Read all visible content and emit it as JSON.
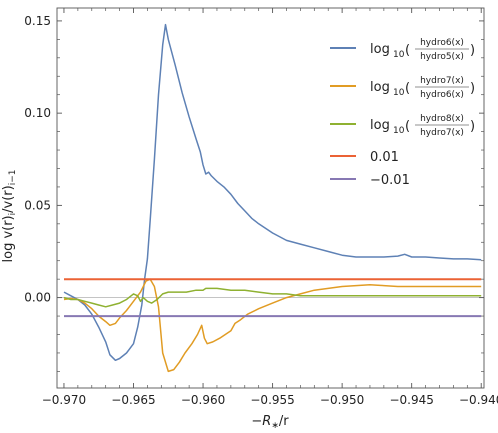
{
  "chart_data": {
    "type": "line",
    "xlabel": "−R∗/r",
    "ylabel": "log v(r)ᵢ/v(r)ᵢ₋₁",
    "xlim": [
      -0.9705,
      -0.9398
    ],
    "ylim": [
      -0.049,
      0.157
    ],
    "x_ticks": [
      -0.97,
      -0.965,
      -0.96,
      -0.955,
      -0.95,
      -0.945,
      -0.94
    ],
    "x_tick_labels": [
      "−0.970",
      "−0.965",
      "−0.960",
      "−0.955",
      "−0.950",
      "−0.945",
      "−0.940"
    ],
    "y_ticks": [
      0.0,
      0.05,
      0.1,
      0.15
    ],
    "y_tick_labels": [
      "0.00",
      "0.05",
      "0.10",
      "0.15"
    ],
    "grid": false,
    "legend_position": "right",
    "zero_line": true,
    "series": [
      {
        "name": "log10(hydro6(x)/hydro5(x))",
        "legend": {
          "prefix": "log",
          "base": "10",
          "num": "hydro6(x)",
          "den": "hydro5(x)"
        },
        "color": "#5e81b5",
        "points": [
          [
            -0.97,
            0.003
          ],
          [
            -0.9695,
            0.001
          ],
          [
            -0.969,
            -0.001
          ],
          [
            -0.9685,
            -0.004
          ],
          [
            -0.968,
            -0.009
          ],
          [
            -0.9675,
            -0.016
          ],
          [
            -0.967,
            -0.024
          ],
          [
            -0.9667,
            -0.031
          ],
          [
            -0.9663,
            -0.034
          ],
          [
            -0.966,
            -0.033
          ],
          [
            -0.9655,
            -0.03
          ],
          [
            -0.965,
            -0.025
          ],
          [
            -0.9647,
            -0.016
          ],
          [
            -0.9644,
            -0.004
          ],
          [
            -0.9642,
            0.01
          ],
          [
            -0.964,
            0.021
          ],
          [
            -0.9638,
            0.042
          ],
          [
            -0.9635,
            0.075
          ],
          [
            -0.9632,
            0.11
          ],
          [
            -0.9629,
            0.137
          ],
          [
            -0.9627,
            0.148
          ],
          [
            -0.9625,
            0.14
          ],
          [
            -0.962,
            0.126
          ],
          [
            -0.9615,
            0.111
          ],
          [
            -0.961,
            0.098
          ],
          [
            -0.9605,
            0.086
          ],
          [
            -0.9602,
            0.079
          ],
          [
            -0.96,
            0.072
          ],
          [
            -0.9598,
            0.067
          ],
          [
            -0.9596,
            0.068
          ],
          [
            -0.9594,
            0.066
          ],
          [
            -0.959,
            0.063
          ],
          [
            -0.9585,
            0.06
          ],
          [
            -0.958,
            0.056
          ],
          [
            -0.9575,
            0.051
          ],
          [
            -0.957,
            0.047
          ],
          [
            -0.9565,
            0.043
          ],
          [
            -0.956,
            0.04
          ],
          [
            -0.955,
            0.035
          ],
          [
            -0.954,
            0.031
          ],
          [
            -0.953,
            0.029
          ],
          [
            -0.952,
            0.027
          ],
          [
            -0.951,
            0.025
          ],
          [
            -0.95,
            0.023
          ],
          [
            -0.949,
            0.022
          ],
          [
            -0.948,
            0.022
          ],
          [
            -0.947,
            0.022
          ],
          [
            -0.946,
            0.0225
          ],
          [
            -0.9455,
            0.0235
          ],
          [
            -0.945,
            0.022
          ],
          [
            -0.944,
            0.022
          ],
          [
            -0.943,
            0.0215
          ],
          [
            -0.942,
            0.021
          ],
          [
            -0.941,
            0.021
          ],
          [
            -0.94,
            0.0205
          ]
        ]
      },
      {
        "name": "log10(hydro7(x)/hydro6(x))",
        "legend": {
          "prefix": "log",
          "base": "10",
          "num": "hydro7(x)",
          "den": "hydro6(x)"
        },
        "color": "#e19c24",
        "points": [
          [
            -0.97,
            -0.001
          ],
          [
            -0.9695,
            -0.0005
          ],
          [
            -0.969,
            -0.001
          ],
          [
            -0.9685,
            -0.003
          ],
          [
            -0.968,
            -0.006
          ],
          [
            -0.9675,
            -0.01
          ],
          [
            -0.967,
            -0.013
          ],
          [
            -0.9667,
            -0.015
          ],
          [
            -0.9663,
            -0.014
          ],
          [
            -0.966,
            -0.011
          ],
          [
            -0.9655,
            -0.007
          ],
          [
            -0.965,
            -0.002
          ],
          [
            -0.9645,
            0.003
          ],
          [
            -0.9641,
            0.009
          ],
          [
            -0.9638,
            0.01
          ],
          [
            -0.9635,
            0.006
          ],
          [
            -0.9632,
            -0.005
          ],
          [
            -0.9629,
            -0.03
          ],
          [
            -0.9625,
            -0.04
          ],
          [
            -0.9621,
            -0.039
          ],
          [
            -0.9617,
            -0.035
          ],
          [
            -0.9613,
            -0.03
          ],
          [
            -0.9608,
            -0.025
          ],
          [
            -0.9604,
            -0.02
          ],
          [
            -0.9601,
            -0.015
          ],
          [
            -0.9599,
            -0.022
          ],
          [
            -0.9597,
            -0.025
          ],
          [
            -0.9593,
            -0.024
          ],
          [
            -0.9588,
            -0.022
          ],
          [
            -0.9584,
            -0.02
          ],
          [
            -0.958,
            -0.018
          ],
          [
            -0.9577,
            -0.014
          ],
          [
            -0.9573,
            -0.012
          ],
          [
            -0.9568,
            -0.009
          ],
          [
            -0.956,
            -0.006
          ],
          [
            -0.955,
            -0.003
          ],
          [
            -0.954,
            0.0
          ],
          [
            -0.953,
            0.002
          ],
          [
            -0.952,
            0.004
          ],
          [
            -0.951,
            0.005
          ],
          [
            -0.95,
            0.006
          ],
          [
            -0.949,
            0.0065
          ],
          [
            -0.948,
            0.007
          ],
          [
            -0.947,
            0.0065
          ],
          [
            -0.946,
            0.006
          ],
          [
            -0.945,
            0.006
          ],
          [
            -0.944,
            0.006
          ],
          [
            -0.943,
            0.006
          ],
          [
            -0.942,
            0.006
          ],
          [
            -0.941,
            0.006
          ],
          [
            -0.94,
            0.006
          ]
        ]
      },
      {
        "name": "log10(hydro8(x)/hydro7(x))",
        "legend": {
          "prefix": "log",
          "base": "10",
          "num": "hydro8(x)",
          "den": "hydro7(x)"
        },
        "color": "#8fb131",
        "points": [
          [
            -0.97,
            0.0
          ],
          [
            -0.9695,
            -0.001
          ],
          [
            -0.969,
            -0.001
          ],
          [
            -0.9685,
            -0.002
          ],
          [
            -0.968,
            -0.003
          ],
          [
            -0.9675,
            -0.004
          ],
          [
            -0.967,
            -0.005
          ],
          [
            -0.9665,
            -0.004
          ],
          [
            -0.966,
            -0.003
          ],
          [
            -0.9655,
            -0.001
          ],
          [
            -0.965,
            0.002
          ],
          [
            -0.9647,
            0.001
          ],
          [
            -0.9645,
            -0.002
          ],
          [
            -0.9643,
            0.0
          ],
          [
            -0.964,
            -0.002
          ],
          [
            -0.9637,
            -0.003
          ],
          [
            -0.9633,
            -0.001
          ],
          [
            -0.9629,
            0.002
          ],
          [
            -0.9625,
            0.003
          ],
          [
            -0.962,
            0.003
          ],
          [
            -0.9612,
            0.003
          ],
          [
            -0.9605,
            0.004
          ],
          [
            -0.96,
            0.004
          ],
          [
            -0.9598,
            0.005
          ],
          [
            -0.959,
            0.005
          ],
          [
            -0.958,
            0.004
          ],
          [
            -0.957,
            0.004
          ],
          [
            -0.956,
            0.003
          ],
          [
            -0.955,
            0.002
          ],
          [
            -0.954,
            0.002
          ],
          [
            -0.953,
            0.001
          ],
          [
            -0.951,
            0.001
          ],
          [
            -0.949,
            0.001
          ],
          [
            -0.947,
            0.001
          ],
          [
            -0.945,
            0.001
          ],
          [
            -0.943,
            0.001
          ],
          [
            -0.941,
            0.001
          ],
          [
            -0.94,
            0.001
          ]
        ]
      },
      {
        "name": "0.01",
        "legend": {
          "text": "0.01"
        },
        "color": "#eb6235",
        "points": [
          [
            -0.97,
            0.01
          ],
          [
            -0.94,
            0.01
          ]
        ]
      },
      {
        "name": "−0.01",
        "legend": {
          "text": "−0.01"
        },
        "color": "#8778b3",
        "points": [
          [
            -0.97,
            -0.01
          ],
          [
            -0.94,
            -0.01
          ]
        ]
      }
    ]
  }
}
